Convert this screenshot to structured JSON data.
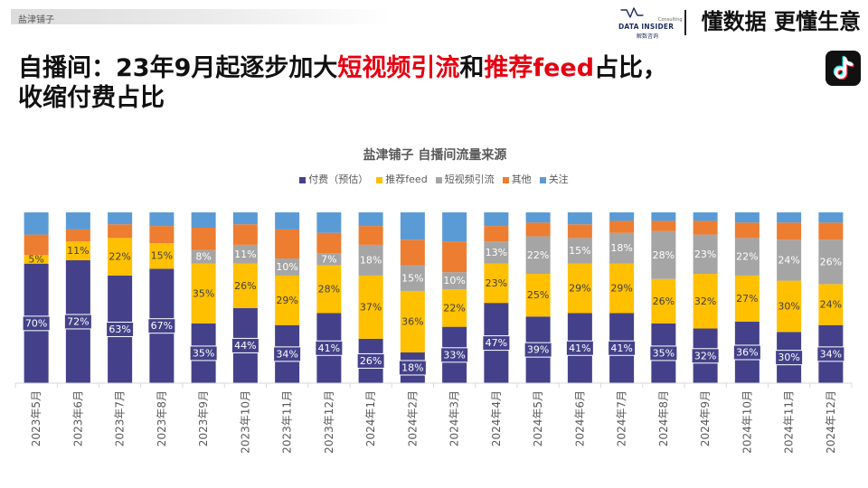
{
  "header": {
    "tag": "盐津铺子",
    "logo": {
      "icon": "data-insider-logo-icon",
      "sub": "Consulting",
      "brand": "DATA INSIDER",
      "cn": "解数咨询",
      "color": "#1f2d5c"
    },
    "slogan": "懂数据 更懂生意"
  },
  "title": {
    "line1": [
      {
        "text": "自播间：23年9月起逐步加大",
        "highlight": false
      },
      {
        "text": "短视频引流",
        "highlight": true
      },
      {
        "text": "和",
        "highlight": false
      },
      {
        "text": "推荐feed",
        "highlight": true
      },
      {
        "text": "占比，",
        "highlight": false
      }
    ],
    "line2": "收缩付费占比",
    "highlight_color": "#e60012"
  },
  "platform_icon": "tiktok-icon",
  "chart_data": {
    "type": "bar",
    "stacked": true,
    "percent": true,
    "title": "盐津铺子 自播间流量来源",
    "unit": "%",
    "ylim": [
      0,
      100
    ],
    "grid": false,
    "legend": "top",
    "categories": [
      "2023年5月",
      "2023年6月",
      "2023年7月",
      "2023年8月",
      "2023年9月",
      "2023年10月",
      "2023年11月",
      "2023年12月",
      "2024年1月",
      "2024年2月",
      "2024年3月",
      "2024年4月",
      "2024年5月",
      "2024年6月",
      "2024年7月",
      "2024年8月",
      "2024年9月",
      "2024年10月",
      "2024年11月",
      "2024年12月"
    ],
    "series": [
      {
        "name": "付费（预估）",
        "color": "#44418a",
        "labels": true,
        "values": [
          70,
          72,
          63,
          67,
          35,
          44,
          34,
          41,
          26,
          18,
          33,
          47,
          39,
          41,
          41,
          35,
          32,
          36,
          30,
          34
        ]
      },
      {
        "name": "推荐feed",
        "color": "#ffc000",
        "labels": true,
        "values": [
          5,
          11,
          22,
          15,
          35,
          26,
          29,
          28,
          37,
          36,
          22,
          23,
          25,
          29,
          29,
          26,
          32,
          27,
          30,
          24
        ]
      },
      {
        "name": "短视频引流",
        "color": "#a5a5a5",
        "labels": true,
        "values": [
          0,
          0,
          0,
          0,
          8,
          11,
          10,
          7,
          18,
          15,
          10,
          13,
          22,
          15,
          18,
          28,
          23,
          22,
          24,
          26
        ]
      },
      {
        "name": "其他",
        "color": "#ed7d31",
        "labels": false,
        "values": [
          12,
          7,
          8,
          10,
          13,
          12,
          17,
          12,
          11,
          15,
          18,
          9,
          8,
          8,
          7,
          6,
          8,
          9,
          10,
          10
        ]
      },
      {
        "name": "关注",
        "color": "#5b9bd5",
        "labels": false,
        "values": [
          13,
          10,
          7,
          8,
          9,
          7,
          10,
          12,
          8,
          16,
          17,
          8,
          6,
          7,
          5,
          5,
          5,
          6,
          6,
          6
        ]
      }
    ]
  }
}
